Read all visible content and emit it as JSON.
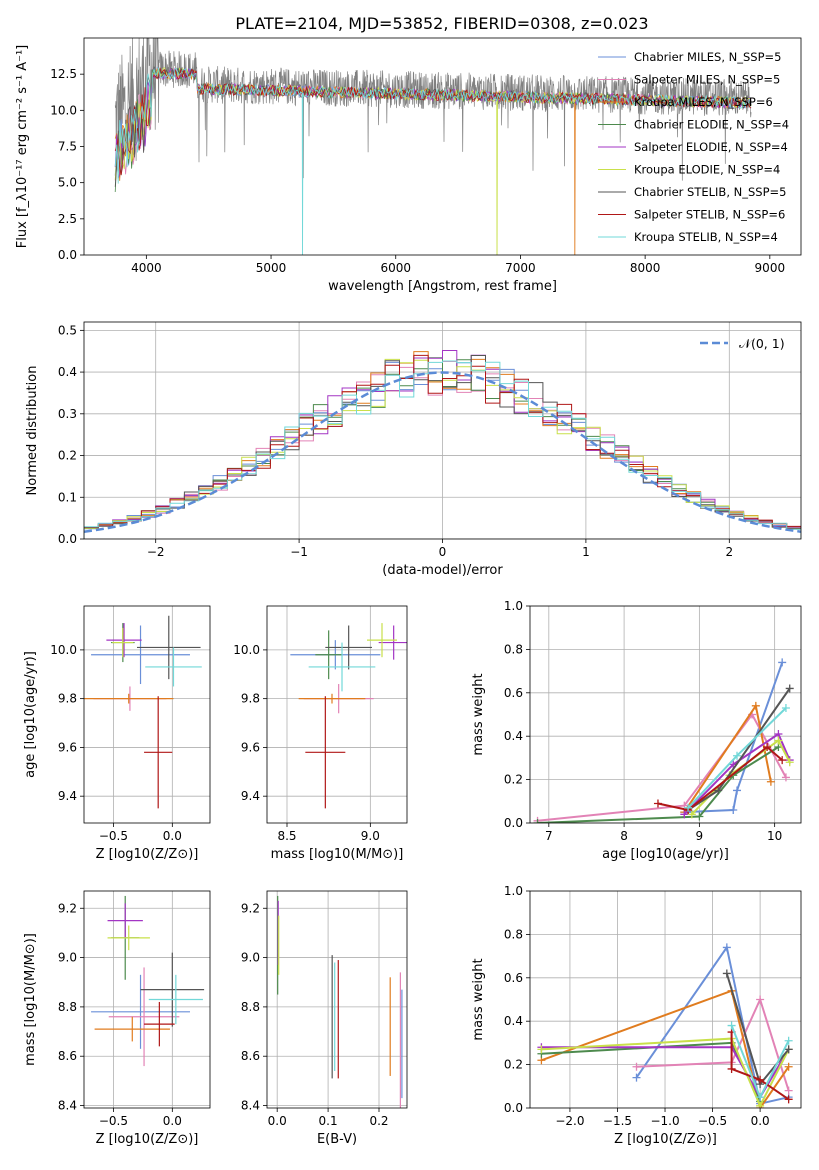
{
  "title": "PLATE=2104, MJD=53852, FIBERID=0308, z=0.023",
  "colors": [
    "#6a8fd8",
    "#e283b6",
    "#e07c1f",
    "#4d8a4d",
    "#a335c4",
    "#c9e04a",
    "#555555",
    "#b01717",
    "#72d8d8"
  ],
  "colors_note_order": "series order matches legend: Chabrier MILES, Salpeter MILES, Kroupa MILES, Chabrier ELODIE, Salpeter ELODIE, Kroupa ELODIE, Chabrier STELIB, Salpeter STELIB, Kroupa STELIB",
  "chart_data": [
    {
      "type": "line",
      "xlabel": "wavelength [Angstrom, rest frame]",
      "ylabel": "Flux [f_λ10⁻¹⁷ erg cm⁻² s⁻¹ A⁻¹]",
      "xlim": [
        3500,
        9250
      ],
      "ylim": [
        0,
        15
      ],
      "xticks": [
        4000,
        5000,
        6000,
        7000,
        8000,
        9000
      ],
      "yticks": [
        0.0,
        2.5,
        5.0,
        7.5,
        10.0,
        12.5
      ],
      "legend_position": "top-right",
      "legend": [
        "Chabrier MILES, N_SSP=5",
        "Salpeter MILES, N_SSP=5",
        "Kroupa MILES, N_SSP=6",
        "Chabrier ELODIE, N_SSP=4",
        "Salpeter ELODIE, N_SSP=4",
        "Kroupa ELODIE, N_SSP=4",
        "Chabrier STELIB, N_SSP=5",
        "Salpeter STELIB, N_SSP=6",
        "Kroupa STELIB, N_SSP=4"
      ],
      "data_series": {
        "name": "data",
        "color": "#808080",
        "x_range": [
          3750,
          8850
        ],
        "approx_level": 12.0
      },
      "model_range": [
        3750,
        8850
      ],
      "model_approx_level": 11.5,
      "dropouts": [
        {
          "x": 5250,
          "series": "Kroupa STELIB"
        },
        {
          "x": 6800,
          "series": "Kroupa ELODIE"
        },
        {
          "x": 7430,
          "series": "Kroupa MILES"
        }
      ]
    },
    {
      "type": "histogram",
      "xlabel": "(data-model)/error",
      "ylabel": "Normed distribution",
      "xlim": [
        -2.5,
        2.5
      ],
      "ylim": [
        0,
        0.52
      ],
      "xticks": [
        -2,
        -1,
        0,
        1,
        2
      ],
      "yticks": [
        0.0,
        0.1,
        0.2,
        0.3,
        0.4,
        0.5
      ],
      "grid": true,
      "legend_position": "top-right",
      "legend": [
        "𝒩(0, 1)"
      ],
      "bins": 50,
      "reference_curve": "normal(0,1)"
    },
    {
      "type": "scatter",
      "xlabel": "Z [log10(Z/Z⊙)]",
      "ylabel": "age  [log10(age/yr)]",
      "xlim": [
        -0.75,
        0.32
      ],
      "ylim": [
        9.29,
        10.18
      ],
      "xticks": [
        -0.5,
        0.0
      ],
      "yticks": [
        9.4,
        9.6,
        9.8,
        10.0
      ],
      "grid": true,
      "points": [
        {
          "x": -0.27,
          "y": 9.98,
          "xerr": 0.42,
          "yerr": 0.12
        },
        {
          "x": -0.36,
          "y": 9.8,
          "xerr": 0.31,
          "yerr": 0.05
        },
        {
          "x": -0.37,
          "y": 9.8,
          "xerr": 0.38,
          "yerr": 0.02
        },
        {
          "x": -0.42,
          "y": 10.03,
          "xerr": 0.1,
          "yerr": 0.08
        },
        {
          "x": -0.41,
          "y": 10.04,
          "xerr": 0.15,
          "yerr": 0.07
        },
        {
          "x": -0.42,
          "y": 10.03,
          "xerr": 0.09,
          "yerr": 0.06
        },
        {
          "x": -0.03,
          "y": 10.01,
          "xerr": 0.27,
          "yerr": 0.13
        },
        {
          "x": -0.12,
          "y": 9.58,
          "xerr": 0.12,
          "yerr": 0.23
        },
        {
          "x": 0.01,
          "y": 9.93,
          "xerr": 0.24,
          "yerr": 0.08
        }
      ]
    },
    {
      "type": "scatter",
      "xlabel": "mass [log10(M/M⊙)]",
      "ylabel": "",
      "xlim": [
        8.38,
        9.22
      ],
      "ylim": [
        9.29,
        10.18
      ],
      "xticks": [
        8.5,
        9.0
      ],
      "yticks": [
        9.4,
        9.6,
        9.8,
        10.0
      ],
      "grid": true,
      "points": [
        {
          "x": 8.79,
          "y": 9.98,
          "xerr": 0.27,
          "yerr": 0.06
        },
        {
          "x": 8.81,
          "y": 9.8,
          "xerr": 0.21,
          "yerr": 0.06
        },
        {
          "x": 8.77,
          "y": 9.8,
          "xerr": 0.2,
          "yerr": 0.02
        },
        {
          "x": 8.75,
          "y": 9.98,
          "xerr": 0.08,
          "yerr": 0.1
        },
        {
          "x": 9.14,
          "y": 10.03,
          "xerr": 0.09,
          "yerr": 0.07
        },
        {
          "x": 9.07,
          "y": 10.04,
          "xerr": 0.09,
          "yerr": 0.07
        },
        {
          "x": 8.87,
          "y": 10.01,
          "xerr": 0.14,
          "yerr": 0.09
        },
        {
          "x": 8.73,
          "y": 9.58,
          "xerr": 0.12,
          "yerr": 0.23
        },
        {
          "x": 8.83,
          "y": 9.93,
          "xerr": 0.2,
          "yerr": 0.1
        }
      ]
    },
    {
      "type": "line",
      "xlabel": "age  [log10(age/yr)]",
      "ylabel": "mass weight",
      "xlim": [
        6.75,
        10.35
      ],
      "ylim": [
        0,
        1.0
      ],
      "xticks": [
        7,
        8,
        9,
        10
      ],
      "yticks": [
        0.0,
        0.2,
        0.4,
        0.6,
        0.8,
        1.0
      ],
      "grid": true,
      "series": [
        {
          "name": "Chabrier MILES",
          "x": [
            8.8,
            9.45,
            9.5,
            10.1
          ],
          "y": [
            0.05,
            0.06,
            0.15,
            0.74
          ]
        },
        {
          "name": "Salpeter MILES",
          "x": [
            6.85,
            8.8,
            9.7,
            10.15
          ],
          "y": [
            0.01,
            0.08,
            0.5,
            0.21
          ]
        },
        {
          "name": "Kroupa MILES",
          "x": [
            8.8,
            9.75,
            9.95
          ],
          "y": [
            0.05,
            0.54,
            0.19
          ]
        },
        {
          "name": "Chabrier ELODIE",
          "x": [
            6.85,
            9.0,
            9.45,
            10.05
          ],
          "y": [
            0.0,
            0.03,
            0.22,
            0.35
          ]
        },
        {
          "name": "Salpeter ELODIE",
          "x": [
            8.8,
            9.45,
            10.05,
            10.2
          ],
          "y": [
            0.04,
            0.27,
            0.41,
            0.29
          ]
        },
        {
          "name": "Kroupa ELODIE",
          "x": [
            8.9,
            9.4,
            10.05,
            10.2
          ],
          "y": [
            0.04,
            0.22,
            0.38,
            0.28
          ]
        },
        {
          "name": "Chabrier STELIB",
          "x": [
            8.85,
            9.25,
            10.2
          ],
          "y": [
            0.06,
            0.15,
            0.62
          ]
        },
        {
          "name": "Salpeter STELIB",
          "x": [
            8.45,
            8.85,
            9.9,
            10.1
          ],
          "y": [
            0.09,
            0.06,
            0.35,
            0.29
          ]
        },
        {
          "name": "Kroupa STELIB",
          "x": [
            8.85,
            9.5,
            10.15
          ],
          "y": [
            0.07,
            0.31,
            0.53
          ]
        }
      ]
    },
    {
      "type": "scatter",
      "xlabel": "Z [log10(Z/Z⊙)]",
      "ylabel": "mass [log10(M/M⊙)]",
      "xlim": [
        -0.75,
        0.32
      ],
      "ylim": [
        8.39,
        9.27
      ],
      "xticks": [
        -0.5,
        0.0
      ],
      "yticks": [
        8.4,
        8.6,
        8.8,
        9.0,
        9.2
      ],
      "grid": true,
      "points": [
        {
          "x": -0.27,
          "y": 8.78,
          "xerr": 0.42,
          "yerr": 0.15
        },
        {
          "x": -0.24,
          "y": 8.76,
          "xerr": 0.3,
          "yerr": 0.2
        },
        {
          "x": -0.34,
          "y": 8.71,
          "xerr": 0.32,
          "yerr": 0.05
        },
        {
          "x": -0.4,
          "y": 9.08,
          "xerr": 0.12,
          "yerr": 0.17
        },
        {
          "x": -0.4,
          "y": 9.15,
          "xerr": 0.15,
          "yerr": 0.07
        },
        {
          "x": -0.37,
          "y": 9.08,
          "xerr": 0.18,
          "yerr": 0.05
        },
        {
          "x": 0.0,
          "y": 8.87,
          "xerr": 0.27,
          "yerr": 0.15
        },
        {
          "x": -0.11,
          "y": 8.73,
          "xerr": 0.13,
          "yerr": 0.09
        },
        {
          "x": 0.03,
          "y": 8.83,
          "xerr": 0.23,
          "yerr": 0.1
        }
      ]
    },
    {
      "type": "scatter",
      "xlabel": "E(B-V)",
      "ylabel": "",
      "xlim": [
        -0.02,
        0.255
      ],
      "ylim": [
        8.39,
        9.27
      ],
      "xticks": [
        0.0,
        0.1,
        0.2
      ],
      "yticks": [
        8.4,
        8.6,
        8.8,
        9.0,
        9.2
      ],
      "grid": true,
      "points": [
        {
          "x": 0.245,
          "y": 8.65,
          "yerr": 0.22
        },
        {
          "x": 0.242,
          "y": 8.66,
          "yerr": 0.28
        },
        {
          "x": 0.222,
          "y": 8.72,
          "yerr": 0.2
        },
        {
          "x": 0.001,
          "y": 9.05,
          "yerr": 0.2
        },
        {
          "x": 0.002,
          "y": 9.1,
          "yerr": 0.13
        },
        {
          "x": 0.003,
          "y": 9.05,
          "yerr": 0.12
        },
        {
          "x": 0.108,
          "y": 8.76,
          "yerr": 0.25
        },
        {
          "x": 0.12,
          "y": 8.75,
          "yerr": 0.24
        },
        {
          "x": 0.113,
          "y": 8.76,
          "yerr": 0.22
        }
      ]
    },
    {
      "type": "line",
      "xlabel": "Z [log10(Z/Z⊙)]",
      "ylabel": "mass weight",
      "xlim": [
        -2.42,
        0.43
      ],
      "ylim": [
        0,
        1.0
      ],
      "xticks": [
        -2.0,
        -1.5,
        -1.0,
        -0.5,
        0.0
      ],
      "yticks": [
        0.0,
        0.2,
        0.4,
        0.6,
        0.8,
        1.0
      ],
      "grid": true,
      "series": [
        {
          "name": "Chabrier MILES",
          "x": [
            -1.3,
            -0.35,
            0.0,
            0.3
          ],
          "y": [
            0.14,
            0.74,
            0.02,
            0.05
          ]
        },
        {
          "name": "Salpeter MILES",
          "x": [
            -1.3,
            -0.3,
            0.0,
            0.3
          ],
          "y": [
            0.19,
            0.21,
            0.5,
            0.08
          ]
        },
        {
          "name": "Kroupa MILES",
          "x": [
            -2.3,
            -0.3,
            0.0,
            0.3
          ],
          "y": [
            0.22,
            0.54,
            0.0,
            0.19
          ]
        },
        {
          "name": "Chabrier ELODIE",
          "x": [
            -2.3,
            -0.3,
            0.0
          ],
          "y": [
            0.25,
            0.3,
            0.03
          ]
        },
        {
          "name": "Salpeter ELODIE",
          "x": [
            -2.3,
            -0.3,
            0.0,
            0.3
          ],
          "y": [
            0.28,
            0.28,
            0.05,
            0.27
          ]
        },
        {
          "name": "Kroupa ELODIE",
          "x": [
            -2.3,
            -0.3,
            0.0,
            0.3
          ],
          "y": [
            0.27,
            0.32,
            0.01,
            0.27
          ]
        },
        {
          "name": "Chabrier STELIB",
          "x": [
            -0.35,
            0.0,
            0.3
          ],
          "y": [
            0.62,
            0.11,
            0.27
          ]
        },
        {
          "name": "Salpeter STELIB",
          "x": [
            -0.3,
            -0.3,
            0.0,
            0.3
          ],
          "y": [
            0.35,
            0.18,
            0.13,
            0.04
          ]
        },
        {
          "name": "Kroupa STELIB",
          "x": [
            -0.3,
            0.0,
            0.3
          ],
          "y": [
            0.38,
            0.05,
            0.31
          ]
        }
      ]
    }
  ]
}
